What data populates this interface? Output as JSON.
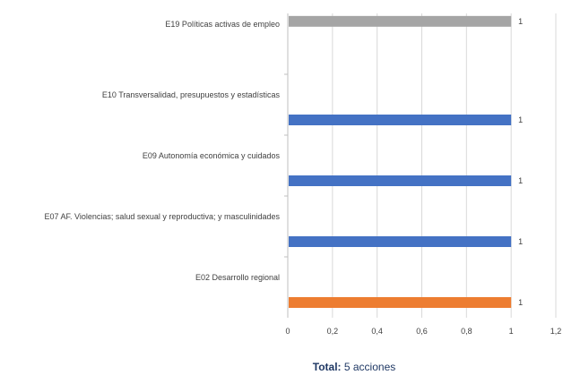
{
  "chart_data": {
    "type": "bar",
    "orientation": "horizontal",
    "categories": [
      "E19 Políticas activas de empleo",
      "E10 Transversalidad, presupuestos y estadísticas",
      "E09 Autonomía económica y cuidados",
      "E07 AF. Violencias; salud sexual y reproductiva; y masculinidades",
      "E02 Desarrollo regional"
    ],
    "values": [
      1,
      1,
      1,
      1,
      1
    ],
    "data_labels": [
      "1",
      "1",
      "1",
      "1",
      "1"
    ],
    "colors": [
      "#a5a5a5",
      "#4472c4",
      "#4472c4",
      "#4472c4",
      "#ed7d31"
    ],
    "xlim": [
      0,
      1.2
    ],
    "xticks": [
      "0",
      "0,2",
      "0,4",
      "0,6",
      "0,8",
      "1",
      "1,2"
    ],
    "grid": true,
    "legend": "none"
  },
  "footer": {
    "total_label": "Total:",
    "total_value": "5 acciones"
  }
}
